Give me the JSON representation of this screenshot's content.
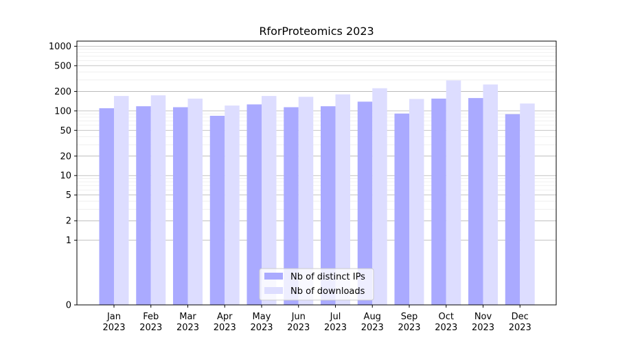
{
  "chart_data": {
    "type": "bar",
    "title": "RforProteomics 2023",
    "xlabel": "",
    "ylabel": "",
    "yscale": "symlog",
    "ylim": [
      0,
      1200
    ],
    "yticks": [
      0,
      1,
      2,
      5,
      10,
      20,
      50,
      100,
      200,
      500,
      1000
    ],
    "categories": [
      "Jan\n2023",
      "Feb\n2023",
      "Mar\n2023",
      "Apr\n2023",
      "May\n2023",
      "Jun\n2023",
      "Jul\n2023",
      "Aug\n2023",
      "Sep\n2023",
      "Oct\n2023",
      "Nov\n2023",
      "Dec\n2023"
    ],
    "series": [
      {
        "name": "Nb of distinct IPs",
        "color": "#aaaaff",
        "values": [
          110,
          118,
          114,
          84,
          126,
          114,
          118,
          139,
          91,
          155,
          158,
          89
        ]
      },
      {
        "name": "Nb of downloads",
        "color": "#ddddff",
        "values": [
          170,
          174,
          155,
          121,
          170,
          165,
          180,
          224,
          153,
          296,
          256,
          130
        ]
      }
    ],
    "grid": true,
    "legend_position": "bottom-center"
  }
}
